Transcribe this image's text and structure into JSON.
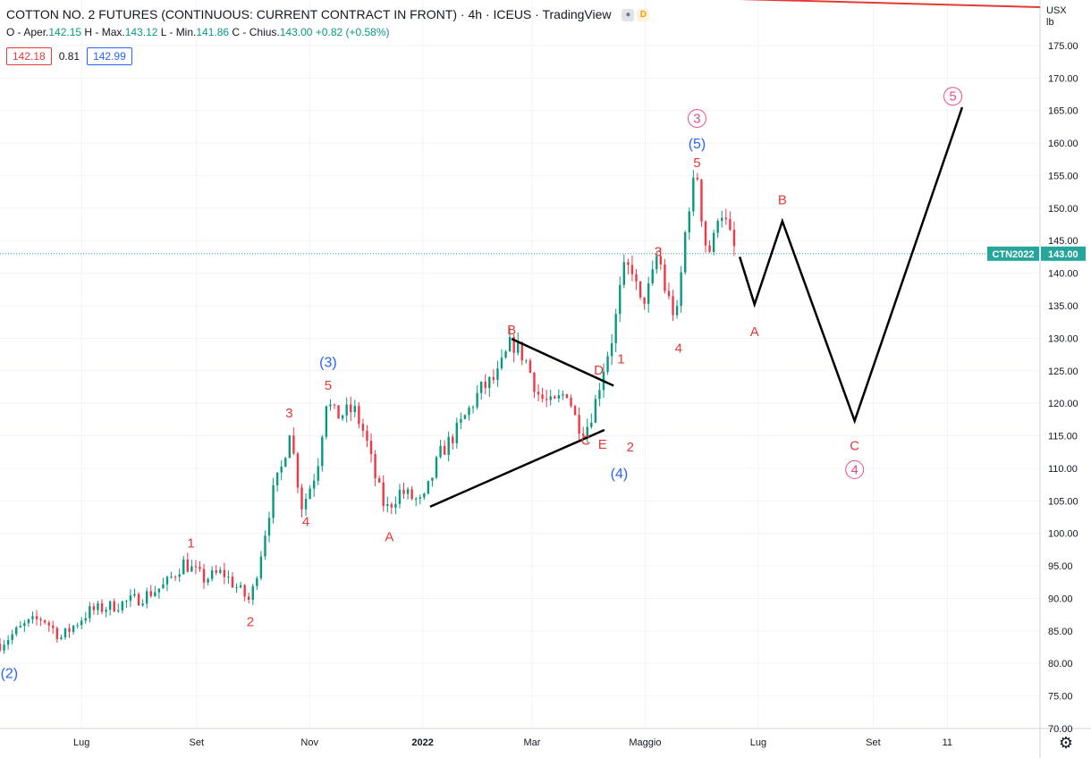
{
  "header": {
    "symbol_title": "COTTON NO. 2 FUTURES (CONTINUOUS: CURRENT CONTRACT IN FRONT)",
    "interval": "4h",
    "exchange": "ICEUS",
    "platform": "TradingView",
    "indicator_dot": "D"
  },
  "ohlc": {
    "open_label": "O - Aper.",
    "open": "142.15",
    "high_label": "H - Max.",
    "high": "143.12",
    "low_label": "L - Min.",
    "low": "141.86",
    "close_label": "C - Chius.",
    "close": "143.00",
    "change": "+0.82 (+0.58%)"
  },
  "badges": {
    "bid": "142.18",
    "spread": "0.81",
    "ask": "142.99"
  },
  "currency": {
    "unit": "USX",
    "unit2": "lb"
  },
  "price_tag": {
    "symbol": "CTN2022",
    "price": "143.00"
  },
  "colors": {
    "up": "#089981",
    "down": "#f23645",
    "wave_red": "#e53935",
    "wave_blue": "#2962ff",
    "wave_pink": "#e84f8a",
    "tag": "#26a69a"
  },
  "chart_data": {
    "type": "candlestick",
    "ylim": [
      70,
      182
    ],
    "x_range": [
      "2021-05-18",
      "2022-11-30"
    ],
    "y_ticks": [
      70,
      75,
      80,
      85,
      90,
      95,
      100,
      105,
      110,
      115,
      120,
      125,
      130,
      135,
      140,
      145,
      150,
      155,
      160,
      165,
      170,
      175
    ],
    "x_ticks": [
      {
        "date": "2021-07-01",
        "label": "Lug"
      },
      {
        "date": "2021-09-01",
        "label": "Set"
      },
      {
        "date": "2021-11-01",
        "label": "Nov"
      },
      {
        "date": "2022-01-01",
        "label": "2022"
      },
      {
        "date": "2022-03-01",
        "label": "Mar"
      },
      {
        "date": "2022-05-01",
        "label": "Maggio"
      },
      {
        "date": "2022-07-01",
        "label": "Lug"
      },
      {
        "date": "2022-09-01",
        "label": "Set"
      },
      {
        "date": "2022-10-11",
        "label": "11"
      }
    ],
    "price_path": [
      [
        "2021-05-18",
        83
      ],
      [
        "2021-06-01",
        86
      ],
      [
        "2021-06-10",
        87
      ],
      [
        "2021-06-20",
        84
      ],
      [
        "2021-07-05",
        88
      ],
      [
        "2021-07-20",
        89
      ],
      [
        "2021-08-01",
        90
      ],
      [
        "2021-08-15",
        92
      ],
      [
        "2021-08-25",
        95.5
      ],
      [
        "2021-09-05",
        93
      ],
      [
        "2021-09-15",
        94
      ],
      [
        "2021-09-25",
        91
      ],
      [
        "2021-09-30",
        89.5
      ],
      [
        "2021-10-05",
        96
      ],
      [
        "2021-10-12",
        106
      ],
      [
        "2021-10-18",
        111
      ],
      [
        "2021-10-21",
        116.5
      ],
      [
        "2021-10-25",
        109
      ],
      [
        "2021-10-28",
        104
      ],
      [
        "2021-11-01",
        107
      ],
      [
        "2021-11-05",
        110
      ],
      [
        "2021-11-10",
        120.5
      ],
      [
        "2021-11-15",
        118
      ],
      [
        "2021-11-25",
        119
      ],
      [
        "2021-12-01",
        115
      ],
      [
        "2021-12-06",
        109
      ],
      [
        "2021-12-12",
        103.5
      ],
      [
        "2021-12-20",
        106.5
      ],
      [
        "2022-01-01",
        104.5
      ],
      [
        "2022-01-10",
        112
      ],
      [
        "2022-01-20",
        116
      ],
      [
        "2022-02-01",
        122
      ],
      [
        "2022-02-10",
        124
      ],
      [
        "2022-02-18",
        129.5
      ],
      [
        "2022-02-25",
        127
      ],
      [
        "2022-03-05",
        121
      ],
      [
        "2022-03-12",
        119.5
      ],
      [
        "2022-03-20",
        122
      ],
      [
        "2022-03-25",
        117
      ],
      [
        "2022-03-30",
        116
      ],
      [
        "2022-04-04",
        120
      ],
      [
        "2022-04-08",
        125
      ],
      [
        "2022-04-14",
        131
      ],
      [
        "2022-04-19",
        140
      ],
      [
        "2022-04-24",
        141
      ],
      [
        "2022-04-28",
        135
      ],
      [
        "2022-05-04",
        138
      ],
      [
        "2022-05-08",
        143.5
      ],
      [
        "2022-05-12",
        137
      ],
      [
        "2022-05-18",
        133
      ],
      [
        "2022-05-24",
        150
      ],
      [
        "2022-05-29",
        155.5
      ],
      [
        "2022-06-02",
        145
      ],
      [
        "2022-06-06",
        143
      ],
      [
        "2022-06-10",
        151
      ],
      [
        "2022-06-15",
        146
      ],
      [
        "2022-06-19",
        143
      ]
    ],
    "projection_path": [
      [
        "2022-06-21",
        142.5
      ],
      [
        "2022-06-29",
        135.2
      ],
      [
        "2022-07-14",
        148
      ],
      [
        "2022-08-22",
        117.3
      ],
      [
        "2022-10-19",
        165.5
      ]
    ],
    "trendlines": [
      {
        "from": [
          "2022-02-18",
          129.9
        ],
        "to": [
          "2022-04-14",
          122.7
        ]
      },
      {
        "from": [
          "2022-01-05",
          104.1
        ],
        "to": [
          "2022-04-09",
          115.9
        ]
      },
      {
        "from": [
          "2022-04-08",
          182.7
        ],
        "to": [
          "2022-11-30",
          180.9
        ]
      }
    ],
    "wave_labels": [
      {
        "text": "(2)",
        "date": "2021-05-23",
        "y": 78.6,
        "color": "blue"
      },
      {
        "text": "1",
        "date": "2021-08-29",
        "y": 98.5,
        "color": "red"
      },
      {
        "text": "2",
        "date": "2021-09-30",
        "y": 86.4,
        "color": "red"
      },
      {
        "text": "3",
        "date": "2021-10-21",
        "y": 118.5,
        "color": "red"
      },
      {
        "text": "4",
        "date": "2021-10-30",
        "y": 101.8,
        "color": "red"
      },
      {
        "text": "5",
        "date": "2021-11-11",
        "y": 122.8,
        "color": "red"
      },
      {
        "text": "(3)",
        "date": "2021-11-11",
        "y": 126.4,
        "color": "blue"
      },
      {
        "text": "A",
        "date": "2021-12-14",
        "y": 99.5,
        "color": "red"
      },
      {
        "text": "B",
        "date": "2022-02-18",
        "y": 131.3,
        "color": "red"
      },
      {
        "text": "C",
        "date": "2022-03-30",
        "y": 114.3,
        "color": "red"
      },
      {
        "text": "D",
        "date": "2022-04-06",
        "y": 125.1,
        "color": "red"
      },
      {
        "text": "E",
        "date": "2022-04-08",
        "y": 113.7,
        "color": "red"
      },
      {
        "text": "1",
        "date": "2022-04-18",
        "y": 126.8,
        "color": "red"
      },
      {
        "text": "2",
        "date": "2022-04-23",
        "y": 113.3,
        "color": "red"
      },
      {
        "text": "(4)",
        "date": "2022-04-17",
        "y": 109.3,
        "color": "blue"
      },
      {
        "text": "3",
        "date": "2022-05-08",
        "y": 143.3,
        "color": "red"
      },
      {
        "text": "4",
        "date": "2022-05-19",
        "y": 128.5,
        "color": "red"
      },
      {
        "text": "5",
        "date": "2022-05-29",
        "y": 157.0,
        "color": "red"
      },
      {
        "text": "(5)",
        "date": "2022-05-29",
        "y": 160.0,
        "color": "blue"
      },
      {
        "text": "3",
        "date": "2022-05-29",
        "y": 163.8,
        "color": "pink",
        "circled": true
      },
      {
        "text": "A",
        "date": "2022-06-29",
        "y": 131.0,
        "color": "red"
      },
      {
        "text": "B",
        "date": "2022-07-14",
        "y": 151.3,
        "color": "red"
      },
      {
        "text": "C",
        "date": "2022-08-22",
        "y": 113.5,
        "color": "red"
      },
      {
        "text": "4",
        "date": "2022-08-22",
        "y": 109.8,
        "color": "pink",
        "circled": true
      },
      {
        "text": "5",
        "date": "2022-10-14",
        "y": 167.2,
        "color": "pink",
        "circled": true
      }
    ]
  }
}
